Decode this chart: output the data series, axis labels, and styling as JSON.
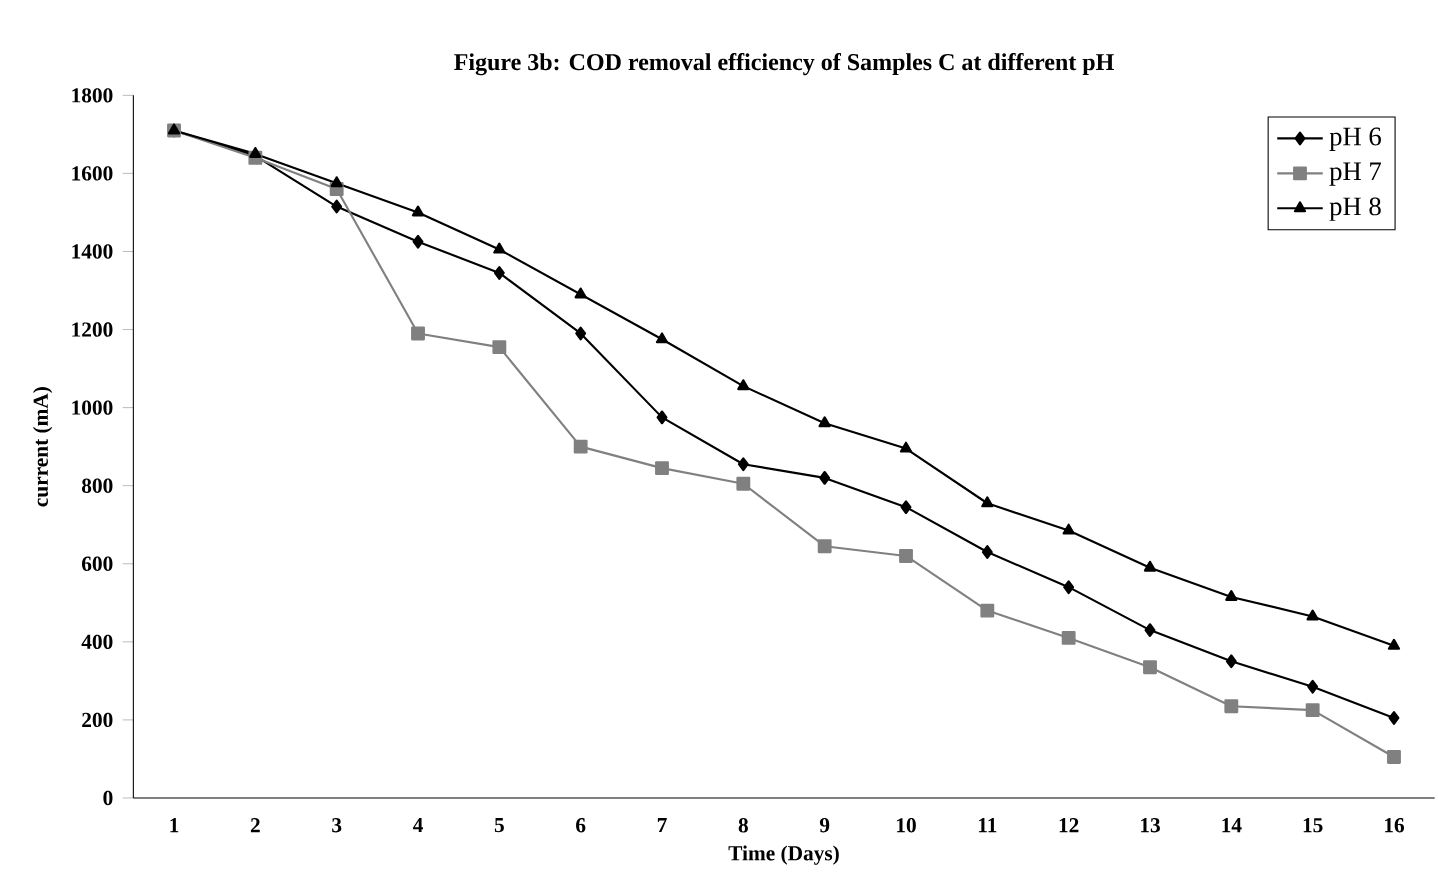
{
  "chart_data": {
    "type": "line",
    "title": "Figure 3b: COD removal efficiency of Samples C at different pH",
    "xlabel": "Time (Days)",
    "ylabel": "current (mA)",
    "categories": [
      "1",
      "2",
      "3",
      "4",
      "5",
      "6",
      "7",
      "8",
      "9",
      "10",
      "11",
      "12",
      "13",
      "14",
      "15",
      "16"
    ],
    "series": [
      {
        "name": "pH 6",
        "color": "#000000",
        "marker": "diamond",
        "values": [
          1710,
          1645,
          1515,
          1425,
          1345,
          1190,
          975,
          855,
          820,
          745,
          630,
          540,
          430,
          350,
          285,
          205
        ]
      },
      {
        "name": "pH 7",
        "color": "#808080",
        "marker": "square",
        "values": [
          1710,
          1640,
          1560,
          1190,
          1155,
          900,
          845,
          805,
          645,
          620,
          480,
          410,
          335,
          235,
          225,
          105
        ]
      },
      {
        "name": "pH 8",
        "color": "#000000",
        "marker": "triangle",
        "values": [
          1710,
          1650,
          1575,
          1500,
          1405,
          1290,
          1175,
          1055,
          960,
          895,
          755,
          685,
          590,
          515,
          465,
          390
        ]
      }
    ],
    "ylim": [
      0,
      1800
    ],
    "yticks": [
      0,
      200,
      400,
      600,
      800,
      1000,
      1200,
      1400,
      1600,
      1800
    ],
    "grid": false,
    "legend": "top right",
    "line_style": "solid"
  }
}
